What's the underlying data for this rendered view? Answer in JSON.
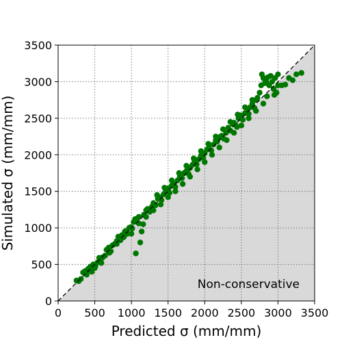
{
  "chart_data": {
    "type": "scatter",
    "xlabel": "Predicted σ (mm/mm)",
    "ylabel": "Simulated σ (mm/mm)",
    "xlim": [
      0,
      3500
    ],
    "ylim": [
      0,
      3500
    ],
    "xticks": [
      "0",
      "500",
      "1000",
      "1500",
      "2000",
      "2500",
      "3000",
      "3500"
    ],
    "yticks": [
      "0",
      "500",
      "1000",
      "1500",
      "2000",
      "2500",
      "3000",
      "3500"
    ],
    "grid": true,
    "grid_style": "dotted",
    "reference_line": {
      "type": "y=x",
      "style": "dashed",
      "color": "#000000"
    },
    "shaded_region": {
      "label": "Non-conservative",
      "area": "below y=x",
      "color": "#d9d9d9"
    },
    "annotation": "Non-conservative",
    "marker_color": "#007700",
    "series": [
      {
        "points": [
          [
            250,
            280
          ],
          [
            280,
            270
          ],
          [
            310,
            300
          ],
          [
            340,
            390
          ],
          [
            370,
            410
          ],
          [
            390,
            360
          ],
          [
            410,
            440
          ],
          [
            440,
            470
          ],
          [
            460,
            400
          ],
          [
            480,
            500
          ],
          [
            510,
            480
          ],
          [
            540,
            530
          ],
          [
            560,
            590
          ],
          [
            590,
            520
          ],
          [
            610,
            600
          ],
          [
            640,
            620
          ],
          [
            660,
            700
          ],
          [
            690,
            730
          ],
          [
            720,
            680
          ],
          [
            740,
            760
          ],
          [
            770,
            780
          ],
          [
            800,
            820
          ],
          [
            820,
            880
          ],
          [
            850,
            830
          ],
          [
            870,
            900
          ],
          [
            890,
            870
          ],
          [
            910,
            950
          ],
          [
            930,
            960
          ],
          [
            950,
            920
          ],
          [
            970,
            1000
          ],
          [
            990,
            1010
          ],
          [
            1010,
            990
          ],
          [
            1030,
            1080
          ],
          [
            1050,
            1120
          ],
          [
            1060,
            650
          ],
          [
            1080,
            1130
          ],
          [
            1100,
            1150
          ],
          [
            1120,
            800
          ],
          [
            1140,
            950
          ],
          [
            1160,
            1050
          ],
          [
            1170,
            1180
          ],
          [
            1200,
            1240
          ],
          [
            1220,
            1260
          ],
          [
            1250,
            1220
          ],
          [
            1280,
            1290
          ],
          [
            1300,
            1340
          ],
          [
            1330,
            1310
          ],
          [
            1360,
            1400
          ],
          [
            1390,
            1420
          ],
          [
            1410,
            1380
          ],
          [
            1440,
            1460
          ],
          [
            1470,
            1500
          ],
          [
            1500,
            1540
          ],
          [
            1520,
            1480
          ],
          [
            1550,
            1580
          ],
          [
            1580,
            1600
          ],
          [
            1600,
            1560
          ],
          [
            1630,
            1650
          ],
          [
            1660,
            1700
          ],
          [
            1690,
            1680
          ],
          [
            1720,
            1750
          ],
          [
            1750,
            1780
          ],
          [
            1780,
            1740
          ],
          [
            1800,
            1820
          ],
          [
            1830,
            1860
          ],
          [
            1860,
            1900
          ],
          [
            1890,
            1870
          ],
          [
            1920,
            1940
          ],
          [
            1950,
            1990
          ],
          [
            1980,
            1960
          ],
          [
            2000,
            2020
          ],
          [
            2030,
            2070
          ],
          [
            2060,
            2120
          ],
          [
            2090,
            2060
          ],
          [
            2120,
            2140
          ],
          [
            2150,
            2200
          ],
          [
            2170,
            2180
          ],
          [
            2200,
            2240
          ],
          [
            2230,
            2260
          ],
          [
            2260,
            2220
          ],
          [
            2290,
            2300
          ],
          [
            2320,
            2370
          ],
          [
            2350,
            2330
          ],
          [
            2380,
            2420
          ],
          [
            2400,
            2440
          ],
          [
            2420,
            2410
          ],
          [
            2440,
            2380
          ],
          [
            2460,
            2500
          ],
          [
            2490,
            2540
          ],
          [
            2520,
            2480
          ],
          [
            2550,
            2570
          ],
          [
            2580,
            2620
          ],
          [
            2600,
            2560
          ],
          [
            2620,
            2650
          ],
          [
            2650,
            2700
          ],
          [
            2680,
            2640
          ],
          [
            2700,
            2750
          ],
          [
            2720,
            2780
          ],
          [
            2750,
            2850
          ],
          [
            2770,
            2950
          ],
          [
            2780,
            3100
          ],
          [
            2800,
            3050
          ],
          [
            2820,
            2980
          ],
          [
            2840,
            3000
          ],
          [
            2860,
            3060
          ],
          [
            2880,
            2950
          ],
          [
            2900,
            3080
          ],
          [
            2920,
            3000
          ],
          [
            2940,
            2900
          ],
          [
            2960,
            3050
          ],
          [
            2980,
            2850
          ],
          [
            3000,
            2950
          ],
          [
            3050,
            2950
          ],
          [
            3100,
            2960
          ],
          [
            3150,
            3050
          ],
          [
            3200,
            3020
          ],
          [
            3250,
            3100
          ],
          [
            3320,
            3120
          ],
          [
            3000,
            3100
          ],
          [
            2950,
            2820
          ],
          [
            2850,
            2800
          ],
          [
            2800,
            2700
          ],
          [
            2700,
            2600
          ],
          [
            2600,
            2500
          ],
          [
            2500,
            2400
          ],
          [
            2400,
            2300
          ],
          [
            2300,
            2200
          ],
          [
            2200,
            2100
          ],
          [
            2100,
            2000
          ],
          [
            2000,
            1900
          ],
          [
            1900,
            1800
          ],
          [
            1800,
            1700
          ],
          [
            1700,
            1600
          ],
          [
            1600,
            1500
          ],
          [
            1500,
            1420
          ],
          [
            1400,
            1320
          ],
          [
            1300,
            1240
          ],
          [
            1200,
            1150
          ],
          [
            1100,
            1060
          ],
          [
            1000,
            920
          ],
          [
            900,
            880
          ],
          [
            800,
            780
          ],
          [
            700,
            660
          ],
          [
            600,
            590
          ],
          [
            500,
            450
          ],
          [
            400,
            420
          ],
          [
            1350,
            1450
          ],
          [
            1450,
            1550
          ],
          [
            1550,
            1650
          ],
          [
            1650,
            1750
          ],
          [
            1750,
            1850
          ],
          [
            1850,
            1950
          ],
          [
            1950,
            2050
          ],
          [
            2050,
            2150
          ],
          [
            2150,
            2250
          ],
          [
            2250,
            2350
          ],
          [
            2350,
            2450
          ],
          [
            2450,
            2550
          ],
          [
            2550,
            2650
          ],
          [
            2650,
            2750
          ]
        ]
      }
    ]
  }
}
